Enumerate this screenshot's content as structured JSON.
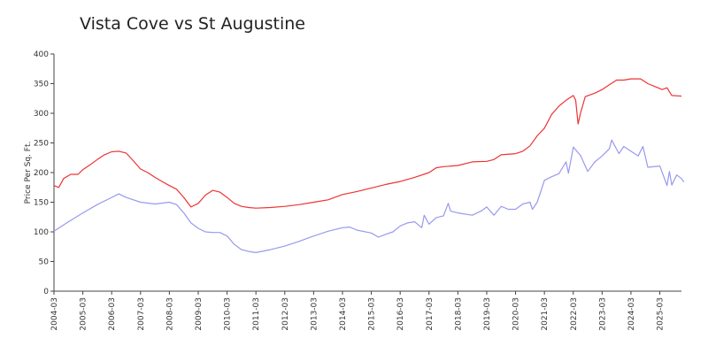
{
  "chart_data": {
    "type": "line",
    "title": "Vista Cove vs St Augustine",
    "xlabel": "",
    "ylabel": "Price Per Sq. Ft.",
    "ylim": [
      0,
      400
    ],
    "yticks": [
      0,
      50,
      100,
      150,
      200,
      250,
      300,
      350,
      400
    ],
    "xlim": [
      "2004-03",
      "2025-12"
    ],
    "xticks": [
      "2004-03",
      "2005-03",
      "2006-03",
      "2007-03",
      "2008-03",
      "2009-03",
      "2010-03",
      "2011-03",
      "2012-03",
      "2013-03",
      "2014-03",
      "2015-03",
      "2016-03",
      "2017-03",
      "2018-03",
      "2019-03",
      "2020-03",
      "2021-03",
      "2022-03",
      "2023-03",
      "2024-03",
      "2025-03"
    ],
    "grid": false,
    "legend": "none",
    "series": [
      {
        "color": "#ee3333",
        "points": [
          [
            "2004-03",
            178
          ],
          [
            "2004-05",
            175
          ],
          [
            "2004-07",
            190
          ],
          [
            "2004-10",
            197
          ],
          [
            "2005-01",
            197
          ],
          [
            "2005-03",
            205
          ],
          [
            "2005-06",
            213
          ],
          [
            "2005-09",
            222
          ],
          [
            "2005-12",
            230
          ],
          [
            "2006-03",
            235
          ],
          [
            "2006-06",
            236
          ],
          [
            "2006-09",
            233
          ],
          [
            "2006-12",
            220
          ],
          [
            "2007-03",
            206
          ],
          [
            "2007-06",
            200
          ],
          [
            "2007-09",
            192
          ],
          [
            "2007-12",
            185
          ],
          [
            "2008-03",
            178
          ],
          [
            "2008-06",
            172
          ],
          [
            "2008-09",
            158
          ],
          [
            "2008-12",
            142
          ],
          [
            "2009-03",
            148
          ],
          [
            "2009-06",
            162
          ],
          [
            "2009-09",
            170
          ],
          [
            "2009-12",
            167
          ],
          [
            "2010-03",
            158
          ],
          [
            "2010-06",
            148
          ],
          [
            "2010-09",
            143
          ],
          [
            "2010-12",
            141
          ],
          [
            "2011-03",
            140
          ],
          [
            "2011-09",
            141
          ],
          [
            "2012-03",
            143
          ],
          [
            "2012-09",
            146
          ],
          [
            "2013-03",
            150
          ],
          [
            "2013-09",
            154
          ],
          [
            "2014-03",
            163
          ],
          [
            "2014-09",
            168
          ],
          [
            "2015-03",
            174
          ],
          [
            "2015-09",
            180
          ],
          [
            "2016-03",
            185
          ],
          [
            "2016-09",
            192
          ],
          [
            "2017-03",
            200
          ],
          [
            "2017-06",
            208
          ],
          [
            "2017-09",
            210
          ],
          [
            "2018-03",
            212
          ],
          [
            "2018-09",
            218
          ],
          [
            "2019-03",
            219
          ],
          [
            "2019-06",
            222
          ],
          [
            "2019-09",
            230
          ],
          [
            "2020-03",
            232
          ],
          [
            "2020-06",
            236
          ],
          [
            "2020-09",
            245
          ],
          [
            "2020-12",
            262
          ],
          [
            "2021-03",
            275
          ],
          [
            "2021-06",
            298
          ],
          [
            "2021-09",
            312
          ],
          [
            "2021-12",
            322
          ],
          [
            "2022-03",
            330
          ],
          [
            "2022-04",
            322
          ],
          [
            "2022-05",
            282
          ],
          [
            "2022-06",
            300
          ],
          [
            "2022-08",
            328
          ],
          [
            "2022-12",
            334
          ],
          [
            "2023-03",
            340
          ],
          [
            "2023-06",
            348
          ],
          [
            "2023-09",
            356
          ],
          [
            "2023-12",
            356
          ],
          [
            "2024-03",
            358
          ],
          [
            "2024-07",
            358
          ],
          [
            "2024-10",
            350
          ],
          [
            "2025-01",
            345
          ],
          [
            "2025-04",
            340
          ],
          [
            "2025-06",
            343
          ],
          [
            "2025-08",
            330
          ],
          [
            "2025-12",
            329
          ]
        ]
      },
      {
        "color": "#9999ee",
        "points": [
          [
            "2004-03",
            101
          ],
          [
            "2004-09",
            117
          ],
          [
            "2005-03",
            132
          ],
          [
            "2005-09",
            146
          ],
          [
            "2006-03",
            158
          ],
          [
            "2006-06",
            164
          ],
          [
            "2006-09",
            158
          ],
          [
            "2007-03",
            150
          ],
          [
            "2007-09",
            147
          ],
          [
            "2008-03",
            150
          ],
          [
            "2008-06",
            146
          ],
          [
            "2008-09",
            132
          ],
          [
            "2008-12",
            115
          ],
          [
            "2009-03",
            106
          ],
          [
            "2009-06",
            100
          ],
          [
            "2009-09",
            99
          ],
          [
            "2009-12",
            99
          ],
          [
            "2010-03",
            93
          ],
          [
            "2010-06",
            79
          ],
          [
            "2010-09",
            70
          ],
          [
            "2010-12",
            67
          ],
          [
            "2011-03",
            65
          ],
          [
            "2011-09",
            70
          ],
          [
            "2012-03",
            76
          ],
          [
            "2012-09",
            84
          ],
          [
            "2013-03",
            93
          ],
          [
            "2013-09",
            101
          ],
          [
            "2014-03",
            107
          ],
          [
            "2014-06",
            108
          ],
          [
            "2014-09",
            103
          ],
          [
            "2015-03",
            98
          ],
          [
            "2015-06",
            91
          ],
          [
            "2015-09",
            96
          ],
          [
            "2015-12",
            100
          ],
          [
            "2016-03",
            110
          ],
          [
            "2016-06",
            115
          ],
          [
            "2016-09",
            117
          ],
          [
            "2016-12",
            107
          ],
          [
            "2017-01",
            128
          ],
          [
            "2017-03",
            113
          ],
          [
            "2017-06",
            124
          ],
          [
            "2017-09",
            127
          ],
          [
            "2017-11",
            148
          ],
          [
            "2017-12",
            135
          ],
          [
            "2018-03",
            132
          ],
          [
            "2018-09",
            128
          ],
          [
            "2019-01",
            136
          ],
          [
            "2019-03",
            142
          ],
          [
            "2019-06",
            128
          ],
          [
            "2019-09",
            143
          ],
          [
            "2019-12",
            138
          ],
          [
            "2020-03",
            138
          ],
          [
            "2020-06",
            147
          ],
          [
            "2020-09",
            150
          ],
          [
            "2020-10",
            138
          ],
          [
            "2020-12",
            150
          ],
          [
            "2021-03",
            187
          ],
          [
            "2021-06",
            193
          ],
          [
            "2021-09",
            198
          ],
          [
            "2021-12",
            218
          ],
          [
            "2022-01",
            199
          ],
          [
            "2022-03",
            243
          ],
          [
            "2022-06",
            229
          ],
          [
            "2022-09",
            202
          ],
          [
            "2022-12",
            218
          ],
          [
            "2023-03",
            228
          ],
          [
            "2023-06",
            240
          ],
          [
            "2023-07",
            255
          ],
          [
            "2023-10",
            232
          ],
          [
            "2023-12",
            244
          ],
          [
            "2024-03",
            236
          ],
          [
            "2024-06",
            228
          ],
          [
            "2024-08",
            244
          ],
          [
            "2024-10",
            209
          ],
          [
            "2025-03",
            211
          ],
          [
            "2025-06",
            178
          ],
          [
            "2025-07",
            202
          ],
          [
            "2025-08",
            179
          ],
          [
            "2025-10",
            196
          ],
          [
            "2025-12",
            190
          ],
          [
            "2026-01",
            184
          ]
        ]
      }
    ]
  }
}
